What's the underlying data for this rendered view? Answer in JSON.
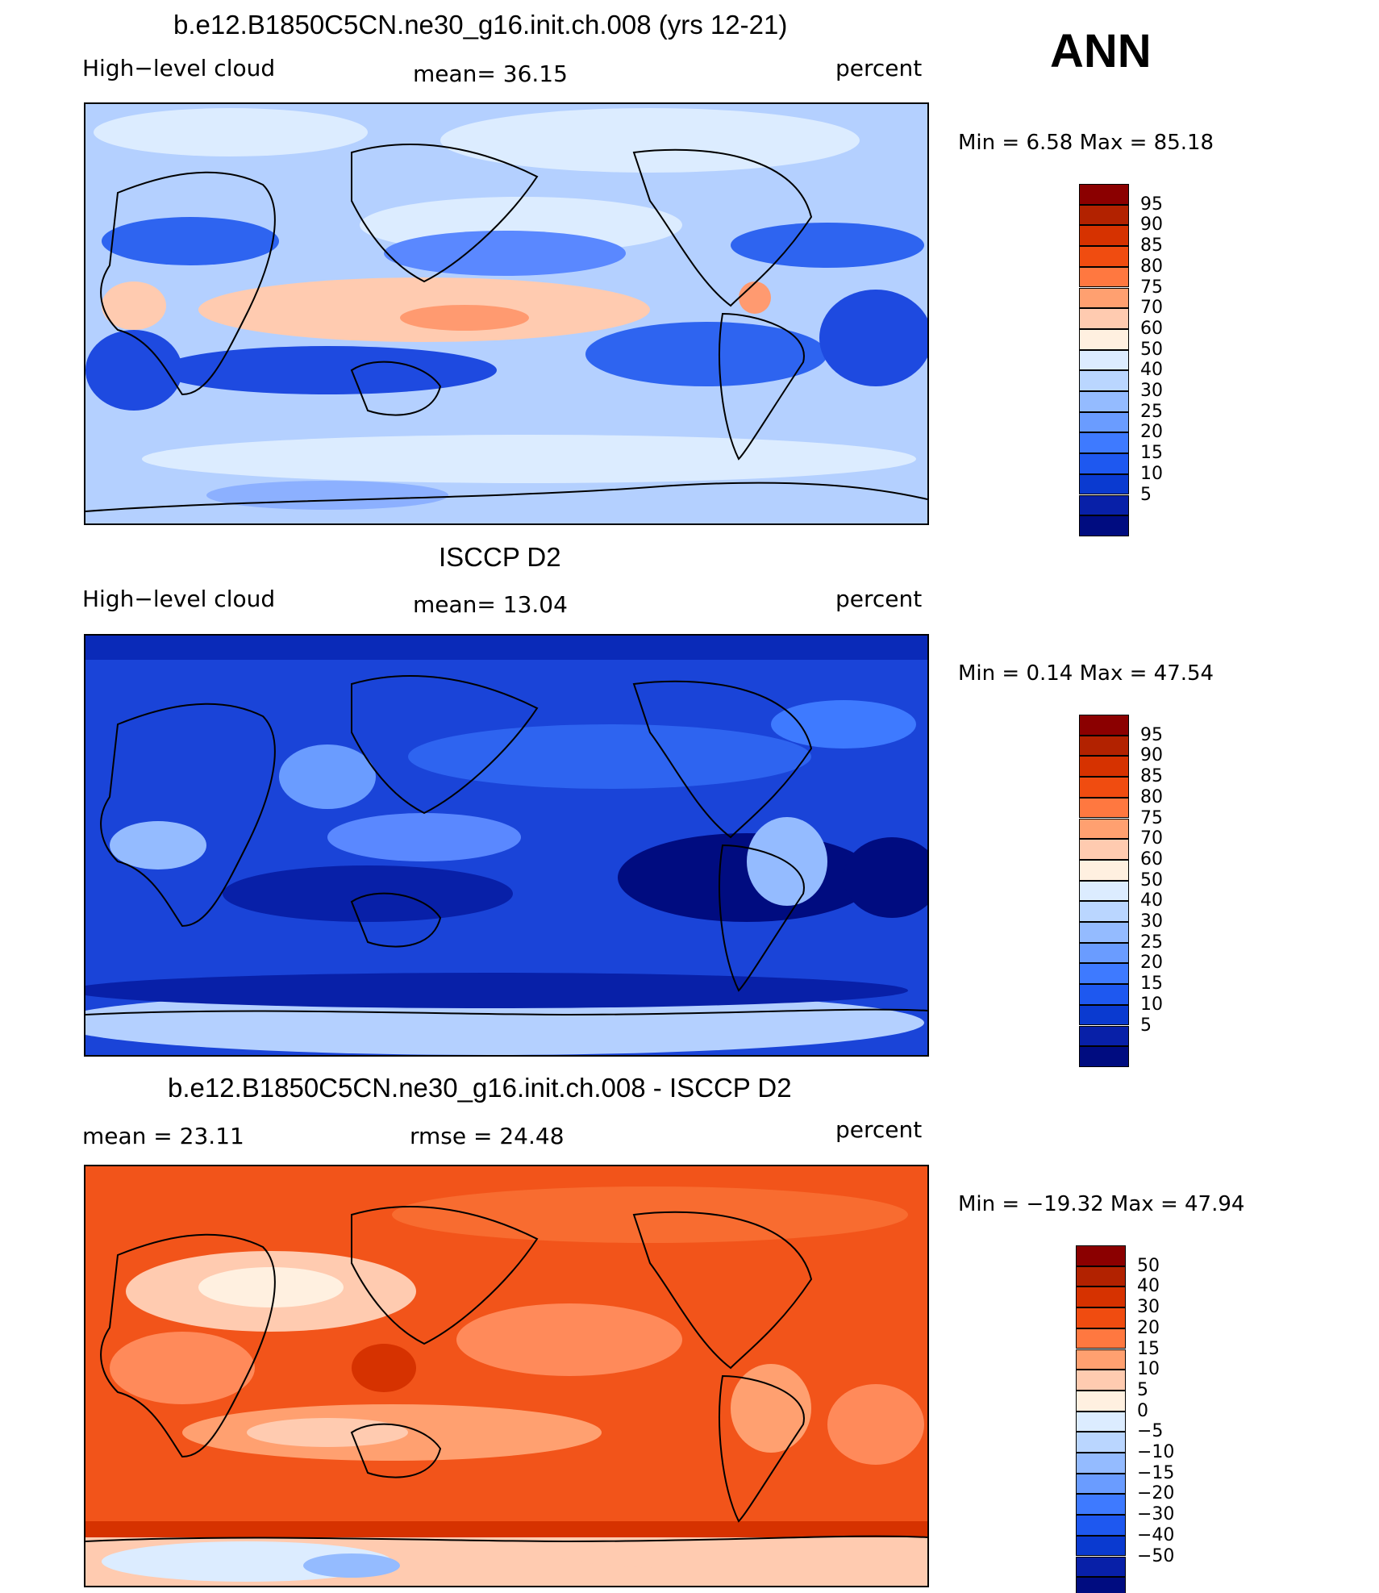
{
  "season": "ANN",
  "panels": [
    {
      "title": "b.e12.B1850C5CN.ne30_g16.init.ch.008 (yrs 12-21)",
      "left_label": "High−level cloud",
      "center_label": "mean=   36.15",
      "right_label": "percent",
      "minmax": "Min  =     6.58  Max  =    85.18",
      "map_field": "model high-level cloud",
      "colorbar": {
        "colors": [
          "#8b0000",
          "#b22200",
          "#d63200",
          "#f04c10",
          "#ff7840",
          "#ffa070",
          "#ffcbb0",
          "#fff0e0",
          "#dcecff",
          "#bad6ff",
          "#94bbff",
          "#6a9cff",
          "#3e7aff",
          "#1e58f0",
          "#0a3ad0",
          "#0820a8",
          "#000c80"
        ],
        "labels": [
          "95",
          "90",
          "85",
          "80",
          "75",
          "70",
          "60",
          "50",
          "40",
          "30",
          "25",
          "20",
          "15",
          "10",
          "5"
        ]
      }
    },
    {
      "title": "ISCCP D2",
      "left_label": "High−level cloud",
      "center_label": "mean=   13.04",
      "right_label": "percent",
      "minmax": "Min  =     0.14  Max  =    47.54",
      "map_field": "observed high-level cloud",
      "colorbar": {
        "colors": [
          "#8b0000",
          "#b22200",
          "#d63200",
          "#f04c10",
          "#ff7840",
          "#ffa070",
          "#ffcbb0",
          "#fff0e0",
          "#dcecff",
          "#bad6ff",
          "#94bbff",
          "#6a9cff",
          "#3e7aff",
          "#1e58f0",
          "#0a3ad0",
          "#0820a8",
          "#000c80"
        ],
        "labels": [
          "95",
          "90",
          "85",
          "80",
          "75",
          "70",
          "60",
          "50",
          "40",
          "30",
          "25",
          "20",
          "15",
          "10",
          "5"
        ]
      }
    },
    {
      "title": "b.e12.B1850C5CN.ne30_g16.init.ch.008 - ISCCP D2",
      "left_label": "mean  =    23.11",
      "center_label": "rmse  =    24.48",
      "right_label": "percent",
      "minmax": "Min  = −19.32  Max  =    47.94",
      "map_field": "difference",
      "colorbar": {
        "colors": [
          "#8b0000",
          "#b22200",
          "#d63200",
          "#f04c10",
          "#ff7840",
          "#ffa070",
          "#ffcbb0",
          "#fff0e0",
          "#dcecff",
          "#bad6ff",
          "#94bbff",
          "#6a9cff",
          "#3e7aff",
          "#1e58f0",
          "#0a3ad0",
          "#0820a8",
          "#000c80"
        ],
        "labels": [
          "50",
          "40",
          "30",
          "20",
          "15",
          "10",
          "5",
          "0",
          "−5",
          "−10",
          "−15",
          "−20",
          "−30",
          "−40",
          "−50"
        ]
      }
    }
  ]
}
